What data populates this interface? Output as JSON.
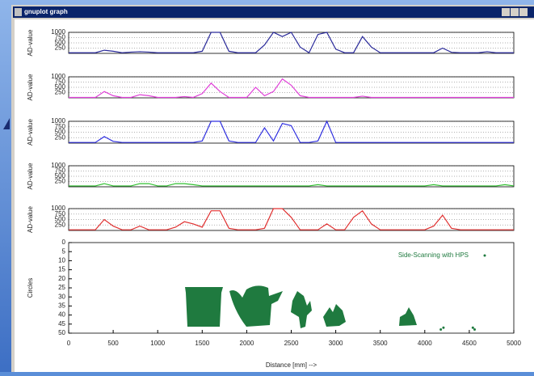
{
  "window": {
    "title": "gnuplot graph"
  },
  "chart_data": [
    {
      "type": "line",
      "ylabel": "AD-value",
      "xlim": [
        0,
        5000
      ],
      "ylim": [
        0,
        1000
      ],
      "yticks": [
        250,
        500,
        750,
        1000
      ],
      "grid": true,
      "x": [
        0,
        100,
        200,
        300,
        400,
        500,
        600,
        700,
        800,
        900,
        1000,
        1100,
        1200,
        1300,
        1400,
        1500,
        1600,
        1700,
        1800,
        1900,
        2000,
        2100,
        2200,
        2300,
        2400,
        2500,
        2600,
        2700,
        2800,
        2900,
        3000,
        3100,
        3200,
        3300,
        3400,
        3500,
        3600,
        3700,
        3800,
        3900,
        4000,
        4100,
        4200,
        4300,
        4400,
        4500,
        4600,
        4700,
        4800,
        4900,
        5000
      ],
      "series": [
        {
          "color": "#2a2a9a",
          "values": [
            30,
            30,
            30,
            30,
            150,
            100,
            30,
            60,
            80,
            60,
            30,
            30,
            30,
            30,
            30,
            100,
            1000,
            1000,
            100,
            30,
            30,
            30,
            400,
            1000,
            800,
            1000,
            300,
            30,
            900,
            1000,
            200,
            30,
            30,
            800,
            300,
            30,
            30,
            30,
            30,
            30,
            30,
            30,
            250,
            50,
            30,
            30,
            30,
            80,
            30,
            30,
            30
          ]
        }
      ]
    },
    {
      "type": "line",
      "ylabel": "AD-value",
      "xlim": [
        0,
        5000
      ],
      "ylim": [
        0,
        1000
      ],
      "yticks": [
        250,
        500,
        750,
        1000
      ],
      "grid": true,
      "x": [
        0,
        100,
        200,
        300,
        400,
        500,
        600,
        700,
        800,
        900,
        1000,
        1100,
        1200,
        1300,
        1400,
        1500,
        1600,
        1700,
        1800,
        1900,
        2000,
        2100,
        2200,
        2300,
        2400,
        2500,
        2600,
        2700,
        2800,
        2900,
        3000,
        3100,
        3200,
        3300,
        3400,
        3500,
        3600,
        3700,
        3800,
        3900,
        4000,
        4100,
        4200,
        4300,
        4400,
        4500,
        4600,
        4700,
        4800,
        4900,
        5000
      ],
      "series": [
        {
          "color": "#e040d8",
          "values": [
            20,
            20,
            20,
            20,
            300,
            100,
            20,
            20,
            150,
            100,
            20,
            20,
            20,
            60,
            20,
            200,
            700,
            300,
            20,
            20,
            20,
            500,
            100,
            300,
            900,
            600,
            100,
            20,
            20,
            20,
            20,
            20,
            20,
            80,
            20,
            20,
            20,
            20,
            20,
            20,
            20,
            20,
            20,
            20,
            20,
            20,
            20,
            20,
            20,
            20,
            20
          ]
        }
      ]
    },
    {
      "type": "line",
      "ylabel": "AD-value",
      "xlim": [
        0,
        5000
      ],
      "ylim": [
        0,
        1000
      ],
      "yticks": [
        250,
        500,
        750,
        1000
      ],
      "grid": true,
      "x": [
        0,
        100,
        200,
        300,
        400,
        500,
        600,
        700,
        800,
        900,
        1000,
        1100,
        1200,
        1300,
        1400,
        1500,
        1600,
        1700,
        1800,
        1900,
        2000,
        2100,
        2200,
        2300,
        2400,
        2500,
        2600,
        2700,
        2800,
        2900,
        3000,
        3100,
        3200,
        3300,
        3400,
        3500,
        3600,
        3700,
        3800,
        3900,
        4000,
        4100,
        4200,
        4300,
        4400,
        4500,
        4600,
        4700,
        4800,
        4900,
        5000
      ],
      "series": [
        {
          "color": "#3030e0",
          "values": [
            30,
            30,
            30,
            30,
            300,
            80,
            30,
            30,
            30,
            30,
            30,
            30,
            30,
            30,
            30,
            100,
            1000,
            1000,
            100,
            30,
            30,
            30,
            700,
            100,
            900,
            800,
            30,
            30,
            100,
            1000,
            30,
            30,
            30,
            30,
            30,
            30,
            30,
            30,
            30,
            30,
            30,
            30,
            30,
            30,
            30,
            30,
            30,
            30,
            30,
            30,
            30
          ]
        }
      ]
    },
    {
      "type": "line",
      "ylabel": "AD-value",
      "xlim": [
        0,
        5000
      ],
      "ylim": [
        0,
        1000
      ],
      "yticks": [
        250,
        500,
        750,
        1000
      ],
      "grid": true,
      "x": [
        0,
        100,
        200,
        300,
        400,
        500,
        600,
        700,
        800,
        900,
        1000,
        1100,
        1200,
        1300,
        1400,
        1500,
        1600,
        1700,
        1800,
        1900,
        2000,
        2100,
        2200,
        2300,
        2400,
        2500,
        2600,
        2700,
        2800,
        2900,
        3000,
        3100,
        3200,
        3300,
        3400,
        3500,
        3600,
        3700,
        3800,
        3900,
        4000,
        4100,
        4200,
        4300,
        4400,
        4500,
        4600,
        4700,
        4800,
        4900,
        5000
      ],
      "series": [
        {
          "color": "#30c030",
          "values": [
            40,
            40,
            40,
            40,
            150,
            40,
            40,
            40,
            150,
            150,
            40,
            40,
            150,
            150,
            100,
            40,
            40,
            40,
            40,
            40,
            40,
            40,
            40,
            40,
            40,
            40,
            40,
            40,
            100,
            40,
            40,
            40,
            40,
            40,
            40,
            40,
            40,
            40,
            40,
            40,
            40,
            100,
            40,
            40,
            40,
            40,
            40,
            40,
            40,
            100,
            40
          ]
        }
      ]
    },
    {
      "type": "line",
      "ylabel": "AD-value",
      "xlim": [
        0,
        5000
      ],
      "ylim": [
        0,
        1000
      ],
      "yticks": [
        250,
        500,
        750,
        1000
      ],
      "grid": true,
      "x": [
        0,
        100,
        200,
        300,
        400,
        500,
        600,
        700,
        800,
        900,
        1000,
        1100,
        1200,
        1300,
        1400,
        1500,
        1600,
        1700,
        1800,
        1900,
        2000,
        2100,
        2200,
        2300,
        2400,
        2500,
        2600,
        2700,
        2800,
        2900,
        3000,
        3100,
        3200,
        3300,
        3400,
        3500,
        3600,
        3700,
        3800,
        3900,
        4000,
        4100,
        4200,
        4300,
        4400,
        4500,
        4600,
        4700,
        4800,
        4900,
        5000
      ],
      "series": [
        {
          "color": "#e03030",
          "values": [
            30,
            30,
            30,
            30,
            500,
            200,
            30,
            30,
            200,
            30,
            30,
            30,
            150,
            400,
            300,
            150,
            900,
            900,
            100,
            30,
            30,
            30,
            100,
            1000,
            1000,
            600,
            30,
            30,
            30,
            300,
            30,
            30,
            600,
            900,
            300,
            30,
            30,
            30,
            30,
            30,
            30,
            200,
            700,
            100,
            30,
            30,
            30,
            30,
            30,
            30,
            30
          ]
        }
      ]
    },
    {
      "type": "scatter",
      "ylabel": "Circles",
      "xlabel": "Distance [mm] -->",
      "xlim": [
        0,
        5000
      ],
      "ylim": [
        50,
        0
      ],
      "xticks": [
        0,
        500,
        1000,
        1500,
        2000,
        2500,
        3000,
        3500,
        4000,
        4500,
        5000
      ],
      "yticks": [
        0,
        5,
        10,
        15,
        20,
        25,
        30,
        35,
        40,
        45,
        50
      ],
      "series": [
        {
          "name": "Side-Scanning with HPS",
          "color": "#1f7a3f",
          "x": [
            4180,
            4210,
            4540,
            4560
          ],
          "y": [
            48,
            47,
            47,
            48
          ]
        }
      ]
    }
  ]
}
